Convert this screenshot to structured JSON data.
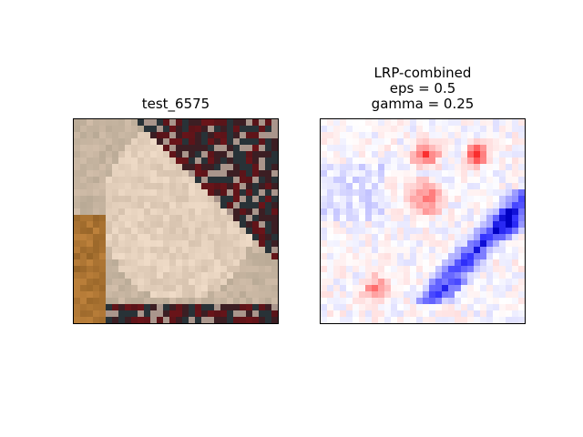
{
  "panels": {
    "left": {
      "title": "test_6575"
    },
    "right": {
      "title_lines": [
        "LRP-combined",
        "eps = 0.5",
        "gamma = 0.25"
      ]
    }
  },
  "image_grid": 32,
  "colors": {
    "positive": "#ff0000",
    "negative": "#0000ff",
    "neutral": "#ffffff",
    "frame": "#000000"
  }
}
